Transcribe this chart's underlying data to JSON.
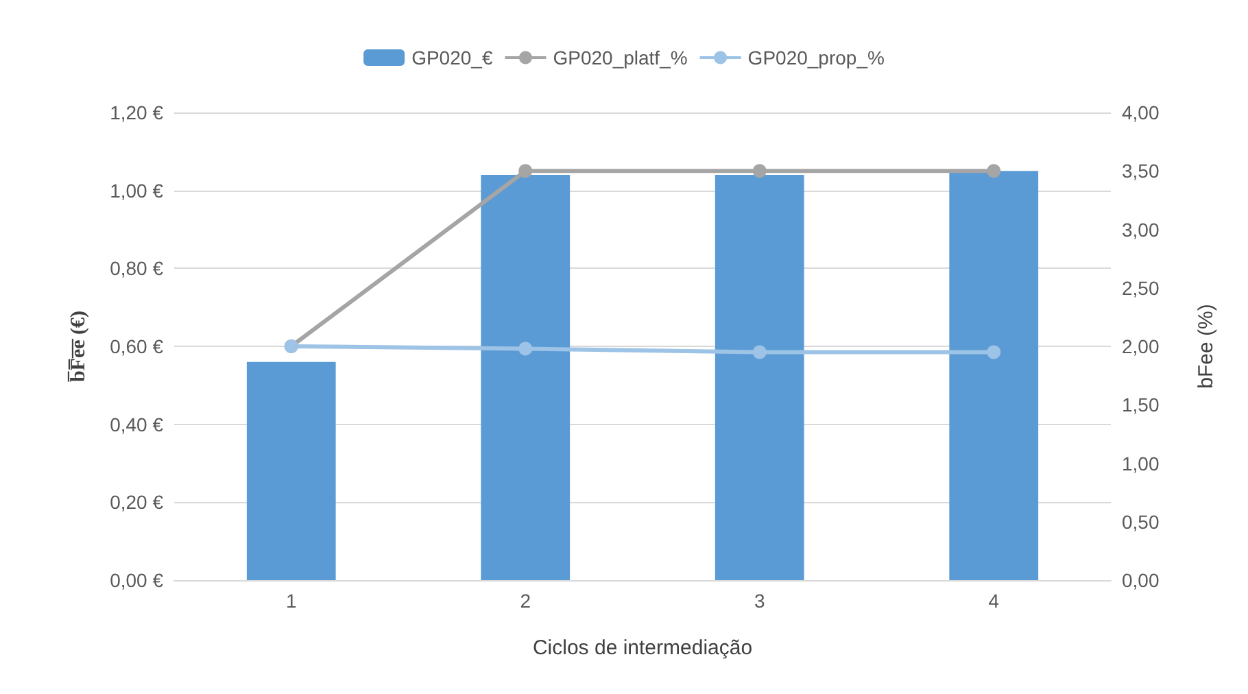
{
  "chart_data": {
    "type": "bar",
    "categories": [
      "1",
      "2",
      "3",
      "4"
    ],
    "series": [
      {
        "name": "GP020_€",
        "color": "#5b9bd5",
        "values": [
          0.56,
          1.04,
          1.04,
          1.05
        ]
      },
      {
        "name": "GP020_platf_%",
        "type": "line",
        "axis": "y2",
        "color": "#a5a5a5",
        "values": [
          2.0,
          3.5,
          3.5,
          3.5
        ]
      },
      {
        "name": "GP020_prop_%",
        "type": "line",
        "axis": "y2",
        "color": "#9dc3e6",
        "values": [
          2.0,
          1.98,
          1.95,
          1.95
        ]
      }
    ],
    "xlabel": "Ciclos de intermediação",
    "ylabel": "b̅F̅e̅e̅ (€)",
    "y2label": "bFee (%)",
    "ylim": [
      0,
      1.2
    ],
    "yticks": [
      {
        "value": 0,
        "label": "0,00 €"
      },
      {
        "value": 0.2,
        "label": "0,20 €"
      },
      {
        "value": 0.4,
        "label": "0,40 €"
      },
      {
        "value": 0.6,
        "label": "0,60 €"
      },
      {
        "value": 0.8,
        "label": "0,80 €"
      },
      {
        "value": 1.0,
        "label": "1,00 €"
      },
      {
        "value": 1.2,
        "label": "1,20 €"
      }
    ],
    "y2lim": [
      0,
      4
    ],
    "y2ticks": [
      {
        "value": 0,
        "label": "0,00"
      },
      {
        "value": 0.5,
        "label": "0,50"
      },
      {
        "value": 1,
        "label": "1,00"
      },
      {
        "value": 1.5,
        "label": "1,50"
      },
      {
        "value": 2,
        "label": "2,00"
      },
      {
        "value": 2.5,
        "label": "2,50"
      },
      {
        "value": 3,
        "label": "3,00"
      },
      {
        "value": 3.5,
        "label": "3,50"
      },
      {
        "value": 4,
        "label": "4,00"
      }
    ],
    "grid": "y",
    "legend": "top",
    "marker": "circle",
    "line_style": "solid"
  }
}
